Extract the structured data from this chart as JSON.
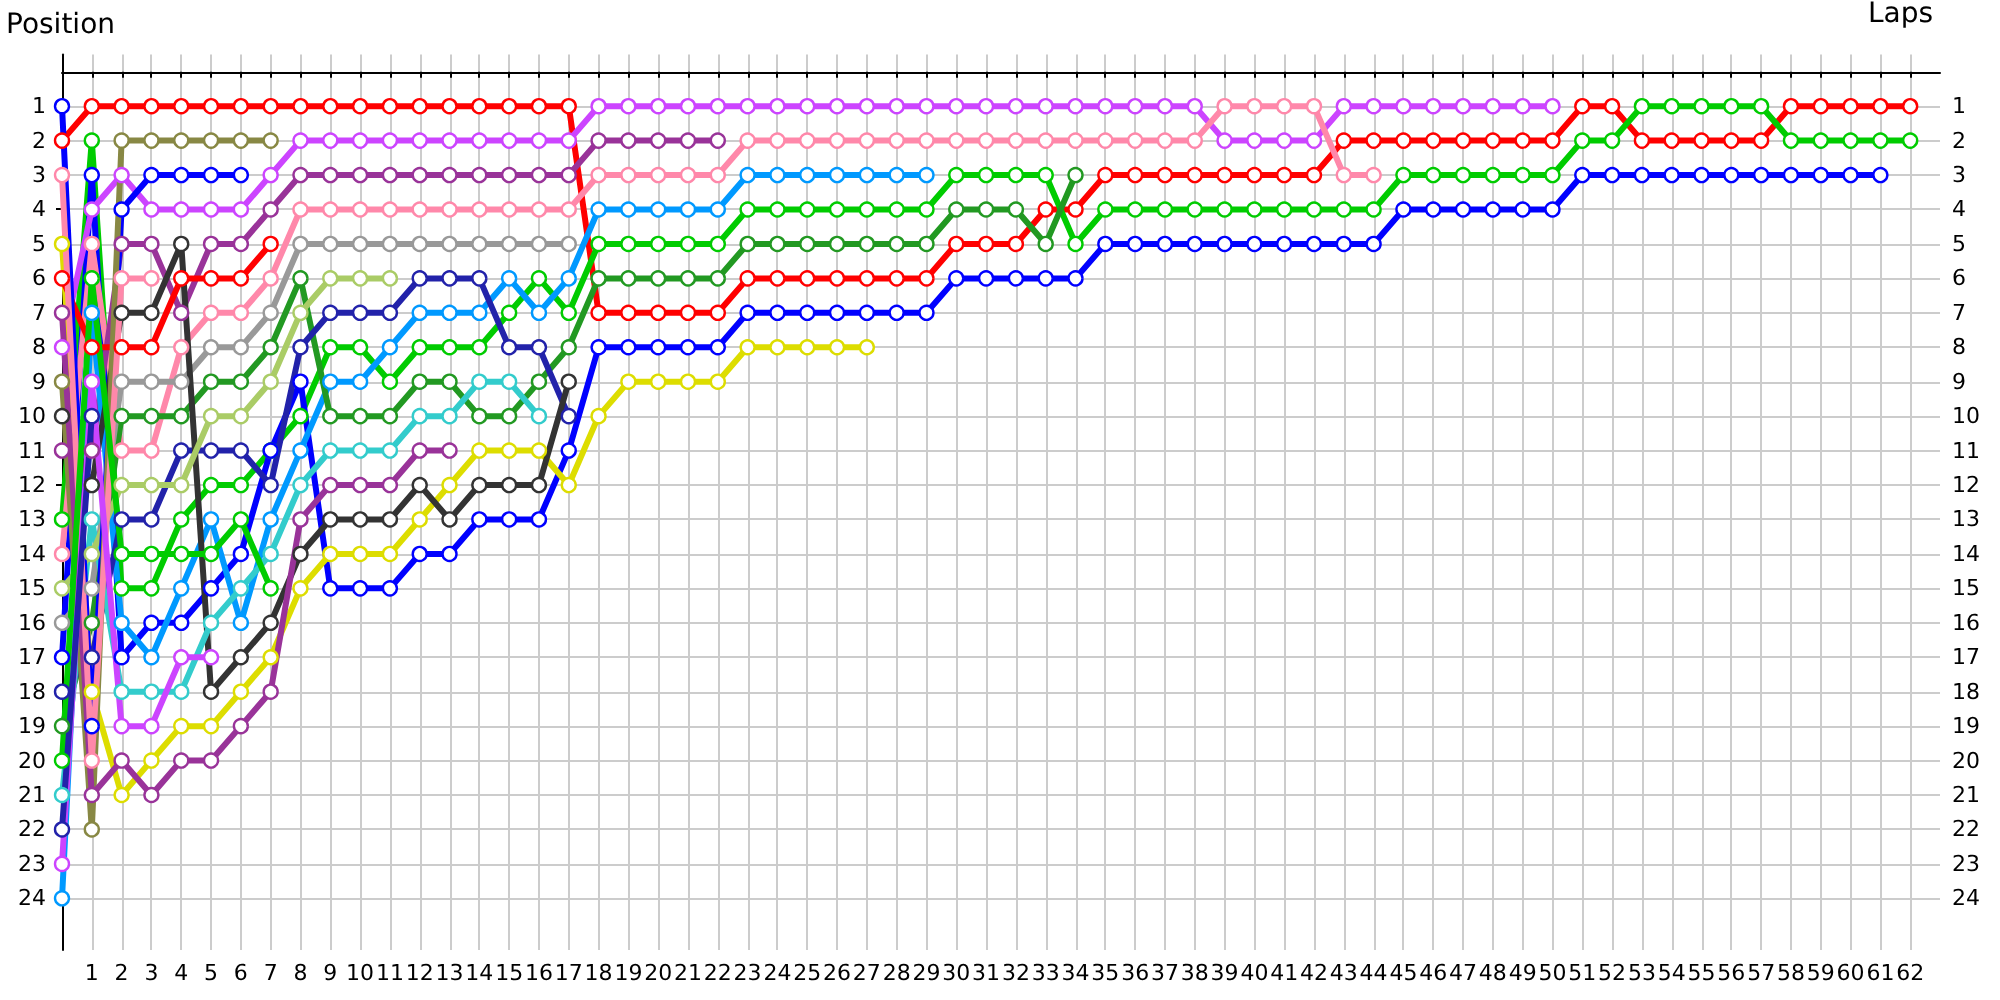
{
  "chart_data": {
    "type": "line",
    "xlabel": "Laps",
    "ylabel": "Position",
    "grid": true,
    "marker": "circle",
    "x": [
      0,
      1,
      2,
      3,
      4,
      5,
      6,
      7,
      8,
      9,
      10,
      11,
      12,
      13,
      14,
      15,
      16,
      17,
      18,
      19,
      20,
      21,
      22,
      23,
      24,
      25,
      26,
      27,
      28,
      29,
      30,
      31,
      32,
      33,
      34,
      35,
      36,
      37,
      38,
      39,
      40,
      41,
      42,
      43,
      44,
      45,
      46,
      47,
      48,
      49,
      50,
      51,
      52,
      53,
      54,
      55,
      56,
      57,
      58,
      59,
      60,
      61,
      62
    ],
    "xlim": [
      0,
      63
    ],
    "xticks": [
      1,
      2,
      3,
      4,
      5,
      6,
      7,
      8,
      9,
      10,
      11,
      12,
      13,
      14,
      15,
      16,
      17,
      18,
      19,
      20,
      21,
      22,
      23,
      24,
      25,
      26,
      27,
      28,
      29,
      30,
      31,
      32,
      33,
      34,
      35,
      36,
      37,
      38,
      39,
      40,
      41,
      42,
      43,
      44,
      45,
      46,
      47,
      48,
      49,
      50,
      51,
      52,
      53,
      54,
      55,
      56,
      57,
      58,
      59,
      60,
      61,
      62
    ],
    "ylim": [
      25.5,
      -0.5
    ],
    "yticks": [
      1,
      2,
      3,
      4,
      5,
      6,
      7,
      8,
      9,
      10,
      11,
      12,
      13,
      14,
      15,
      16,
      17,
      18,
      19,
      20,
      21,
      22,
      23,
      24
    ],
    "y2lim": [
      25.5,
      -0.5
    ],
    "y2ticks": [
      1,
      2,
      3,
      4,
      5,
      6,
      7,
      8,
      9,
      10,
      11,
      12,
      13,
      14,
      15,
      16,
      17,
      18,
      19,
      20,
      21,
      22,
      23,
      24
    ],
    "series": [
      {
        "color": "#ff0000",
        "values": [
          2,
          1,
          1,
          1,
          1,
          1,
          1,
          1,
          1,
          1,
          1,
          1,
          1,
          1,
          1,
          1,
          1,
          1,
          7,
          7,
          7,
          7,
          7,
          6,
          6,
          6,
          6,
          6,
          6,
          6,
          5,
          5,
          5,
          4,
          4,
          3,
          3,
          3,
          3,
          3,
          3,
          3,
          3,
          2,
          2,
          2,
          2,
          2,
          2,
          2,
          2,
          1,
          1,
          2,
          2,
          2,
          2,
          2,
          1,
          1,
          1,
          1,
          1
        ]
      },
      {
        "color": "#00cc00",
        "values": [
          13,
          2,
          15,
          15,
          13,
          12,
          12,
          11,
          10,
          8,
          8,
          9,
          8,
          8,
          8,
          7,
          6,
          7,
          5,
          5,
          5,
          5,
          5,
          4,
          4,
          4,
          4,
          4,
          4,
          4,
          3,
          3,
          3,
          3,
          5,
          4,
          4,
          4,
          4,
          4,
          4,
          4,
          4,
          4,
          4,
          3,
          3,
          3,
          3,
          3,
          3,
          2,
          2,
          1,
          1,
          1,
          1,
          1,
          2,
          2,
          2,
          2,
          2
        ]
      },
      {
        "color": "#0000ff",
        "values": [
          17,
          3,
          17,
          16,
          16,
          15,
          14,
          11,
          9,
          15,
          15,
          15,
          14,
          14,
          13,
          13,
          13,
          11,
          8,
          8,
          8,
          8,
          8,
          7,
          7,
          7,
          7,
          7,
          7,
          7,
          6,
          6,
          6,
          6,
          6,
          5,
          5,
          5,
          5,
          5,
          5,
          5,
          5,
          5,
          5,
          4,
          4,
          4,
          4,
          4,
          4,
          3,
          3,
          3,
          3,
          3,
          3,
          3,
          3,
          3,
          3,
          3,
          null
        ]
      },
      {
        "color": "#cc44ff",
        "values": [
          8,
          4,
          3,
          4,
          4,
          4,
          4,
          3,
          2,
          2,
          2,
          2,
          2,
          2,
          2,
          2,
          2,
          2,
          1,
          1,
          1,
          1,
          1,
          1,
          1,
          1,
          1,
          1,
          1,
          1,
          1,
          1,
          1,
          1,
          1,
          1,
          1,
          1,
          1,
          2,
          2,
          2,
          2,
          1,
          1,
          1,
          1,
          1,
          1,
          1,
          1,
          null,
          null,
          null,
          null,
          null,
          null,
          null,
          null,
          null,
          null,
          null,
          null
        ]
      },
      {
        "color": "#ff88aa",
        "values": [
          14,
          5,
          11,
          11,
          8,
          7,
          7,
          6,
          4,
          4,
          4,
          4,
          4,
          4,
          4,
          4,
          4,
          4,
          3,
          3,
          3,
          3,
          3,
          2,
          2,
          2,
          2,
          2,
          2,
          2,
          2,
          2,
          2,
          2,
          2,
          2,
          2,
          2,
          2,
          1,
          1,
          1,
          1,
          3,
          3,
          null,
          null,
          null,
          null,
          null,
          null,
          null,
          null,
          null,
          null,
          null,
          null,
          null,
          null,
          null,
          null,
          null,
          null
        ]
      },
      {
        "color": "#993399",
        "values": [
          11,
          11,
          5,
          5,
          7,
          5,
          5,
          4,
          3,
          3,
          3,
          3,
          3,
          3,
          3,
          3,
          3,
          3,
          2,
          2,
          2,
          2,
          2,
          null,
          null,
          null,
          null,
          null,
          null,
          null,
          null,
          null,
          null,
          null,
          null,
          null,
          null,
          null,
          null,
          null,
          null,
          null,
          null,
          null,
          null,
          null,
          null,
          null,
          null,
          null,
          null,
          null,
          null,
          null,
          null,
          null,
          null,
          null,
          null,
          null,
          null,
          null,
          null
        ]
      },
      {
        "color": "#0099ff",
        "values": [
          24,
          7,
          16,
          17,
          15,
          13,
          16,
          13,
          11,
          9,
          9,
          8,
          7,
          7,
          7,
          6,
          7,
          6,
          4,
          4,
          4,
          4,
          4,
          3,
          3,
          3,
          3,
          3,
          3,
          3,
          null,
          null,
          null,
          null,
          null,
          null,
          null,
          null,
          null,
          null,
          null,
          null,
          null,
          null,
          null,
          null,
          null,
          null,
          null,
          null,
          null,
          null,
          null,
          null,
          null,
          null,
          null,
          null,
          null,
          null,
          null,
          null,
          null
        ]
      },
      {
        "color": "#229922",
        "values": [
          19,
          16,
          10,
          10,
          10,
          9,
          9,
          8,
          6,
          10,
          10,
          10,
          9,
          9,
          10,
          10,
          9,
          8,
          6,
          6,
          6,
          6,
          6,
          5,
          5,
          5,
          5,
          5,
          5,
          5,
          4,
          4,
          4,
          5,
          3,
          null,
          null,
          null,
          null,
          null,
          null,
          null,
          null,
          null,
          null,
          null,
          null,
          null,
          null,
          null,
          null,
          null,
          null,
          null,
          null,
          null,
          null,
          null,
          null,
          null,
          null,
          null,
          null
        ]
      },
      {
        "color": "#dddd00",
        "values": [
          5,
          18,
          21,
          20,
          19,
          19,
          18,
          17,
          15,
          14,
          14,
          14,
          13,
          12,
          11,
          11,
          11,
          12,
          10,
          9,
          9,
          9,
          9,
          8,
          8,
          8,
          8,
          8,
          null,
          null,
          null,
          null,
          null,
          null,
          null,
          null,
          null,
          null,
          null,
          null,
          null,
          null,
          null,
          null,
          null,
          null,
          null,
          null,
          null,
          null,
          null,
          null,
          null,
          null,
          null,
          null,
          null,
          null,
          null,
          null,
          null,
          null,
          null
        ]
      },
      {
        "color": "#2222aa",
        "values": [
          18,
          17,
          13,
          13,
          11,
          11,
          11,
          12,
          8,
          7,
          7,
          7,
          6,
          6,
          6,
          8,
          8,
          10,
          null,
          null,
          null,
          null,
          null,
          null,
          null,
          null,
          null,
          null,
          null,
          null,
          null,
          null,
          null,
          null,
          null,
          null,
          null,
          null,
          null,
          null,
          null,
          null,
          null,
          null,
          null,
          null,
          null,
          null,
          null,
          null,
          null,
          null,
          null,
          null,
          null,
          null,
          null,
          null,
          null,
          null,
          null,
          null,
          null
        ]
      },
      {
        "color": "#999999",
        "values": [
          16,
          15,
          9,
          9,
          9,
          8,
          8,
          7,
          5,
          5,
          5,
          5,
          5,
          5,
          5,
          5,
          5,
          5,
          null,
          null,
          null,
          null,
          null,
          null,
          null,
          null,
          null,
          null,
          null,
          null,
          null,
          null,
          null,
          null,
          null,
          null,
          null,
          null,
          null,
          null,
          null,
          null,
          null,
          null,
          null,
          null,
          null,
          null,
          null,
          null,
          null,
          null,
          null,
          null,
          null,
          null,
          null,
          null,
          null,
          null,
          null,
          null,
          null
        ]
      },
      {
        "color": "#333333",
        "values": [
          10,
          12,
          7,
          7,
          5,
          18,
          17,
          16,
          14,
          13,
          13,
          13,
          12,
          13,
          12,
          12,
          12,
          9,
          null,
          null,
          null,
          null,
          null,
          null,
          null,
          null,
          null,
          null,
          null,
          null,
          null,
          null,
          null,
          null,
          null,
          null,
          null,
          null,
          null,
          null,
          null,
          null,
          null,
          null,
          null,
          null,
          null,
          null,
          null,
          null,
          null,
          null,
          null,
          null,
          null,
          null,
          null,
          null,
          null,
          null,
          null,
          null,
          null
        ]
      },
      {
        "color": "#33cccc",
        "values": [
          21,
          13,
          18,
          18,
          18,
          16,
          15,
          14,
          12,
          11,
          11,
          11,
          10,
          10,
          9,
          9,
          10,
          null,
          null,
          null,
          null,
          null,
          null,
          null,
          null,
          null,
          null,
          null,
          null,
          null,
          null,
          null,
          null,
          null,
          null,
          null,
          null,
          null,
          null,
          null,
          null,
          null,
          null,
          null,
          null,
          null,
          null,
          null,
          null,
          null,
          null,
          null,
          null,
          null,
          null,
          null,
          null,
          null,
          null,
          null,
          null,
          null,
          null
        ]
      },
      {
        "color": "#aacc66",
        "values": [
          15,
          14,
          12,
          12,
          12,
          10,
          10,
          9,
          7,
          6,
          6,
          6,
          null,
          null,
          null,
          null,
          null,
          null,
          null,
          null,
          null,
          null,
          null,
          null,
          null,
          null,
          null,
          null,
          null,
          null,
          null,
          null,
          null,
          null,
          null,
          null,
          null,
          null,
          null,
          null,
          null,
          null,
          null,
          null,
          null,
          null,
          null,
          null,
          null,
          null,
          null,
          null,
          null,
          null,
          null,
          null,
          null,
          null,
          null,
          null,
          null,
          null,
          null
        ]
      },
      {
        "color": "#ff0000",
        "values": [
          6,
          8,
          8,
          8,
          6,
          6,
          6,
          5,
          null,
          null,
          null,
          null,
          null,
          null,
          null,
          null,
          null,
          null,
          null,
          null,
          null,
          null,
          null,
          null,
          null,
          null,
          null,
          null,
          null,
          null,
          null,
          null,
          null,
          null,
          null,
          null,
          null,
          null,
          null,
          null,
          null,
          null,
          null,
          null,
          null,
          null,
          null,
          null,
          null,
          null,
          null,
          null,
          null,
          null,
          null,
          null,
          null,
          null,
          null,
          null,
          null,
          null,
          null
        ]
      },
      {
        "color": "#0000ff",
        "values": [
          1,
          19,
          4,
          3,
          3,
          3,
          3,
          null,
          null,
          null,
          null,
          null,
          null,
          null,
          null,
          null,
          null,
          null,
          null,
          null,
          null,
          null,
          null,
          null,
          null,
          null,
          null,
          null,
          null,
          null,
          null,
          null,
          null,
          null,
          null,
          null,
          null,
          null,
          null,
          null,
          null,
          null,
          null,
          null,
          null,
          null,
          null,
          null,
          null,
          null,
          null,
          null,
          null,
          null,
          null,
          null,
          null,
          null,
          null,
          null,
          null,
          null,
          null
        ]
      },
      {
        "color": "#888844",
        "values": [
          9,
          22,
          2,
          2,
          2,
          2,
          2,
          2,
          null,
          null,
          null,
          null,
          null,
          null,
          null,
          null,
          null,
          null,
          null,
          null,
          null,
          null,
          null,
          null,
          null,
          null,
          null,
          null,
          null,
          null,
          null,
          null,
          null,
          null,
          null,
          null,
          null,
          null,
          null,
          null,
          null,
          null,
          null,
          null,
          null,
          null,
          null,
          null,
          null,
          null,
          null,
          null,
          null,
          null,
          null,
          null,
          null,
          null,
          null,
          null,
          null,
          null,
          null
        ]
      },
      {
        "color": "#993399",
        "values": [
          7,
          21,
          20,
          21,
          20,
          20,
          19,
          18,
          13,
          12,
          12,
          12,
          11,
          11,
          null,
          null,
          null,
          null,
          null,
          null,
          null,
          null,
          null,
          null,
          null,
          null,
          null,
          null,
          null,
          null,
          null,
          null,
          null,
          null,
          null,
          null,
          null,
          null,
          null,
          null,
          null,
          null,
          null,
          null,
          null,
          null,
          null,
          null,
          null,
          null,
          null,
          null,
          null,
          null,
          null,
          null,
          null,
          null,
          null,
          null,
          null,
          null,
          null
        ]
      },
      {
        "color": "#ff88aa",
        "values": [
          3,
          20,
          6,
          6,
          null,
          null,
          null,
          null,
          null,
          null,
          null,
          null,
          null,
          null,
          null,
          null,
          null,
          null,
          null,
          null,
          null,
          null,
          null,
          null,
          null,
          null,
          null,
          null,
          null,
          null,
          null,
          null,
          null,
          null,
          null,
          null,
          null,
          null,
          null,
          null,
          null,
          null,
          null,
          null,
          null,
          null,
          null,
          null,
          null,
          null,
          null,
          null,
          null,
          null,
          null,
          null,
          null,
          null,
          null,
          null,
          null,
          null,
          null
        ]
      },
      {
        "color": "#00cc00",
        "values": [
          20,
          6,
          14,
          14,
          14,
          14,
          13,
          15,
          null,
          null,
          null,
          null,
          null,
          null,
          null,
          null,
          null,
          null,
          null,
          null,
          null,
          null,
          null,
          null,
          null,
          null,
          null,
          null,
          null,
          null,
          null,
          null,
          null,
          null,
          null,
          null,
          null,
          null,
          null,
          null,
          null,
          null,
          null,
          null,
          null,
          null,
          null,
          null,
          null,
          null,
          null,
          null,
          null,
          null,
          null,
          null,
          null,
          null,
          null,
          null,
          null,
          null,
          null
        ]
      },
      {
        "color": "#cc44ff",
        "values": [
          23,
          9,
          19,
          19,
          17,
          17,
          null,
          null,
          null,
          null,
          null,
          null,
          null,
          null,
          null,
          null,
          null,
          null,
          null,
          null,
          null,
          null,
          null,
          null,
          null,
          null,
          null,
          null,
          null,
          null,
          null,
          null,
          null,
          null,
          null,
          null,
          null,
          null,
          null,
          null,
          null,
          null,
          null,
          null,
          null,
          null,
          null,
          null,
          null,
          null,
          null,
          null,
          null,
          null,
          null,
          null,
          null,
          null,
          null,
          null,
          null,
          null,
          null
        ]
      },
      {
        "color": "#2222aa",
        "values": [
          22,
          10,
          null,
          null,
          null,
          null,
          null,
          null,
          null,
          null,
          null,
          null,
          null,
          null,
          null,
          null,
          null,
          null,
          null,
          null,
          null,
          null,
          null,
          null,
          null,
          null,
          null,
          null,
          null,
          null,
          null,
          null,
          null,
          null,
          null,
          null,
          null,
          null,
          null,
          null,
          null,
          null,
          null,
          null,
          null,
          null,
          null,
          null,
          null,
          null,
          null,
          null,
          null,
          null,
          null,
          null,
          null,
          null,
          null,
          null,
          null,
          null,
          null
        ]
      }
    ]
  }
}
